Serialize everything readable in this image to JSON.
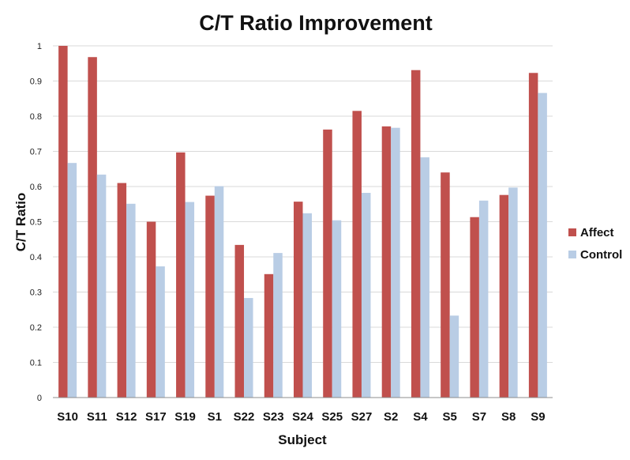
{
  "chart_data": {
    "type": "bar",
    "title": "C/T Ratio Improvement",
    "xlabel": "Subject",
    "ylabel": "C/T Ratio",
    "ylim": [
      0,
      1
    ],
    "yticks": [
      "0",
      "0.1",
      "0.2",
      "0.3",
      "0.4",
      "0.5",
      "0.6",
      "0.7",
      "0.8",
      "0.9",
      "1"
    ],
    "grid": true,
    "legend_position": "right",
    "categories": [
      "S10",
      "S11",
      "S12",
      "S17",
      "S19",
      "S1",
      "S22",
      "S23",
      "S24",
      "S25",
      "S27",
      "S2",
      "S4",
      "S5",
      "S7",
      "S8",
      "S9"
    ],
    "series": [
      {
        "name": "Affect",
        "color": "#c0504d",
        "values": [
          1.0,
          0.968,
          0.61,
          0.5,
          0.697,
          0.574,
          0.434,
          0.351,
          0.557,
          0.762,
          0.815,
          0.771,
          0.931,
          0.64,
          0.513,
          0.576,
          0.923
        ]
      },
      {
        "name": "Control",
        "color": "#b9cde5",
        "values": [
          0.667,
          0.634,
          0.551,
          0.373,
          0.556,
          0.601,
          0.283,
          0.411,
          0.524,
          0.504,
          0.582,
          0.767,
          0.683,
          0.233,
          0.56,
          0.597,
          0.866
        ]
      }
    ]
  }
}
